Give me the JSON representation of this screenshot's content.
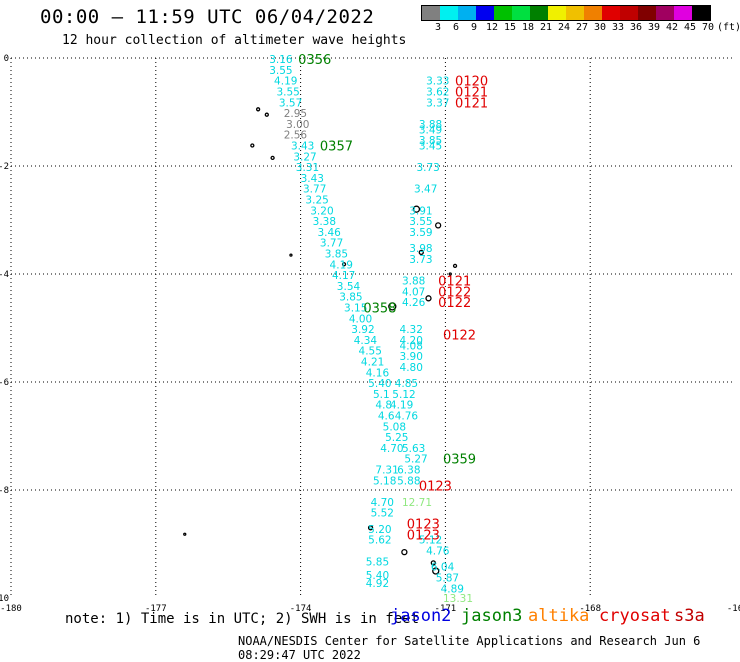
{
  "header": {
    "title": "00:00 — 11:59 UTC 06/04/2022",
    "subtitle": "12 hour collection of altimeter wave heights"
  },
  "legend": {
    "colors": [
      "#808080",
      "#00f0f0",
      "#00b0f0",
      "#0000f0",
      "#00c000",
      "#00e040",
      "#008000",
      "#f0f000",
      "#f0c000",
      "#f08000",
      "#e00000",
      "#c00000",
      "#800000",
      "#a00060",
      "#e000e0",
      "#000000"
    ],
    "labels": [
      "3",
      "6",
      "9",
      "12",
      "15",
      "18",
      "21",
      "24",
      "27",
      "30",
      "33",
      "36",
      "39",
      "42",
      "45",
      "70",
      "(ft)"
    ]
  },
  "axes": {
    "x_ticks": [
      "-180",
      "-177",
      "-174",
      "-171",
      "-168",
      "-16"
    ],
    "y_ticks": [
      "0",
      "-2",
      "-4",
      "-6",
      "-8",
      "-10"
    ]
  },
  "satellites": {
    "jason2": {
      "label": "jason2",
      "color": "#0000e0"
    },
    "jason3": {
      "label": "jason3",
      "color": "#008000"
    },
    "altika": {
      "label": "altika",
      "color": "#ff8000"
    },
    "cryosat": {
      "label": "cryosat",
      "color": "#e00000"
    },
    "s3a": {
      "label": "s3a",
      "color": "#c00000"
    }
  },
  "note": "note: 1) Time is in UTC; 2) SWH is in feet",
  "footer": "NOAA/NESDIS Center for Satellite Applications and Research   Jun  6 08:29:47 UTC 2022",
  "observations": [
    {
      "lon": -174.65,
      "lat": -0.02,
      "text": "3.16",
      "color": "#00d8e0"
    },
    {
      "lon": -174.65,
      "lat": -0.22,
      "text": "3.55",
      "color": "#00d8e0"
    },
    {
      "lon": -174.55,
      "lat": -0.42,
      "text": "4.19",
      "color": "#00d8e0"
    },
    {
      "lon": -174.5,
      "lat": -0.62,
      "text": "3.55",
      "color": "#00d8e0"
    },
    {
      "lon": -174.45,
      "lat": -0.82,
      "text": "3.57",
      "color": "#00d8e0"
    },
    {
      "lon": -174.35,
      "lat": -1.02,
      "text": "2.95",
      "color": "#808080"
    },
    {
      "lon": -174.3,
      "lat": -1.22,
      "text": "3.00",
      "color": "#808080"
    },
    {
      "lon": -174.35,
      "lat": -1.42,
      "text": "2.56",
      "color": "#808080"
    },
    {
      "lon": -174.2,
      "lat": -1.62,
      "text": "3.43",
      "color": "#00d8e0"
    },
    {
      "lon": -174.15,
      "lat": -1.82,
      "text": "3.27",
      "color": "#00d8e0"
    },
    {
      "lon": -174.1,
      "lat": -2.02,
      "text": "3.31",
      "color": "#00d8e0"
    },
    {
      "lon": -174.0,
      "lat": -2.22,
      "text": "3.43",
      "color": "#00d8e0"
    },
    {
      "lon": -173.95,
      "lat": -2.42,
      "text": "3.77",
      "color": "#00d8e0"
    },
    {
      "lon": -173.9,
      "lat": -2.62,
      "text": "3.25",
      "color": "#00d8e0"
    },
    {
      "lon": -173.8,
      "lat": -2.82,
      "text": "3.20",
      "color": "#00d8e0"
    },
    {
      "lon": -173.75,
      "lat": -3.02,
      "text": "3.38",
      "color": "#00d8e0"
    },
    {
      "lon": -173.65,
      "lat": -3.22,
      "text": "3.46",
      "color": "#00d8e0"
    },
    {
      "lon": -173.6,
      "lat": -3.42,
      "text": "3.77",
      "color": "#00d8e0"
    },
    {
      "lon": -173.5,
      "lat": -3.62,
      "text": "3.85",
      "color": "#00d8e0"
    },
    {
      "lon": -173.4,
      "lat": -3.82,
      "text": "4.19",
      "color": "#00d8e0"
    },
    {
      "lon": -173.35,
      "lat": -4.02,
      "text": "4.17",
      "color": "#00d8e0"
    },
    {
      "lon": -173.25,
      "lat": -4.22,
      "text": "3.54",
      "color": "#00d8e0"
    },
    {
      "lon": -173.2,
      "lat": -4.42,
      "text": "3.85",
      "color": "#00d8e0"
    },
    {
      "lon": -173.1,
      "lat": -4.62,
      "text": "3.15",
      "color": "#00d8e0"
    },
    {
      "lon": -173.0,
      "lat": -4.82,
      "text": "4.00",
      "color": "#00d8e0"
    },
    {
      "lon": -172.95,
      "lat": -5.02,
      "text": "3.92",
      "color": "#00d8e0"
    },
    {
      "lon": -172.9,
      "lat": -5.22,
      "text": "4.34",
      "color": "#00d8e0"
    },
    {
      "lon": -172.8,
      "lat": -5.42,
      "text": "4.55",
      "color": "#00d8e0"
    },
    {
      "lon": -172.75,
      "lat": -5.62,
      "text": "4.21",
      "color": "#00d8e0"
    },
    {
      "lon": -172.65,
      "lat": -5.82,
      "text": "4.16",
      "color": "#00d8e0"
    },
    {
      "lon": -172.6,
      "lat": -6.02,
      "text": "5.40",
      "color": "#00d8e0"
    },
    {
      "lon": -172.5,
      "lat": -6.22,
      "text": "5.1",
      "color": "#00d8e0"
    },
    {
      "lon": -172.45,
      "lat": -6.42,
      "text": "4.8",
      "color": "#00d8e0"
    },
    {
      "lon": -172.4,
      "lat": -6.62,
      "text": "4.6",
      "color": "#00d8e0"
    },
    {
      "lon": -172.3,
      "lat": -6.82,
      "text": "5.08",
      "color": "#00d8e0"
    },
    {
      "lon": -172.25,
      "lat": -7.02,
      "text": "5.25",
      "color": "#00d8e0"
    },
    {
      "lon": -172.35,
      "lat": -7.22,
      "text": "4.70",
      "color": "#00d8e0"
    },
    {
      "lon": -172.45,
      "lat": -7.62,
      "text": "7.31",
      "color": "#00d8e0"
    },
    {
      "lon": -172.5,
      "lat": -7.82,
      "text": "5.18",
      "color": "#00d8e0"
    },
    {
      "lon": -172.55,
      "lat": -8.22,
      "text": "4.70",
      "color": "#00d8e0"
    },
    {
      "lon": -172.55,
      "lat": -8.42,
      "text": "5.52",
      "color": "#00d8e0"
    },
    {
      "lon": -172.6,
      "lat": -8.72,
      "text": "5.20",
      "color": "#00d8e0"
    },
    {
      "lon": -172.6,
      "lat": -8.92,
      "text": "5.62",
      "color": "#00d8e0"
    },
    {
      "lon": -172.65,
      "lat": -9.32,
      "text": "5.85",
      "color": "#00d8e0"
    },
    {
      "lon": -172.65,
      "lat": -9.57,
      "text": "5.40",
      "color": "#00d8e0"
    },
    {
      "lon": -172.65,
      "lat": -9.72,
      "text": "4.92",
      "color": "#00d8e0"
    },
    {
      "lon": -172.05,
      "lat": -6.02,
      "text": "4.85",
      "color": "#00d8e0"
    },
    {
      "lon": -172.1,
      "lat": -6.22,
      "text": "5.12",
      "color": "#00d8e0"
    },
    {
      "lon": -172.15,
      "lat": -6.42,
      "text": "4.19",
      "color": "#00d8e0"
    },
    {
      "lon": -172.05,
      "lat": -6.62,
      "text": "4.76",
      "color": "#00d8e0"
    },
    {
      "lon": -171.9,
      "lat": -7.22,
      "text": "5.63",
      "color": "#00d8e0"
    },
    {
      "lon": -171.85,
      "lat": -7.42,
      "text": "5.27",
      "color": "#00d8e0"
    },
    {
      "lon": -172.0,
      "lat": -7.62,
      "text": "6.38",
      "color": "#00d8e0"
    },
    {
      "lon": -172.0,
      "lat": -7.82,
      "text": "5.88",
      "color": "#00d8e0"
    },
    {
      "lon": -171.9,
      "lat": -8.22,
      "text": "12.71",
      "color": "#90e880"
    },
    {
      "lon": -171.55,
      "lat": -8.92,
      "text": "5.12",
      "color": "#00d8e0"
    },
    {
      "lon": -171.4,
      "lat": -9.12,
      "text": "4.76",
      "color": "#00d8e0"
    },
    {
      "lon": -171.3,
      "lat": -9.42,
      "text": "6.04",
      "color": "#00d8e0"
    },
    {
      "lon": -171.2,
      "lat": -9.62,
      "text": "5.87",
      "color": "#00d8e0"
    },
    {
      "lon": -171.1,
      "lat": -9.82,
      "text": "4.89",
      "color": "#00d8e0"
    },
    {
      "lon": -171.05,
      "lat": -10.0,
      "text": "13.31",
      "color": "#90e880"
    },
    {
      "lon": -171.4,
      "lat": -0.42,
      "text": "3.33",
      "color": "#00d8e0"
    },
    {
      "lon": -171.4,
      "lat": -0.62,
      "text": "3.62",
      "color": "#00d8e0"
    },
    {
      "lon": -171.4,
      "lat": -0.82,
      "text": "3.37",
      "color": "#00d8e0"
    },
    {
      "lon": -171.55,
      "lat": -1.22,
      "text": "3.88",
      "color": "#00d8e0"
    },
    {
      "lon": -171.55,
      "lat": -1.32,
      "text": "3.49",
      "color": "#00d8e0"
    },
    {
      "lon": -171.55,
      "lat": -1.52,
      "text": "3.85",
      "color": "#00d8e0"
    },
    {
      "lon": -171.55,
      "lat": -1.62,
      "text": "3.45",
      "color": "#00d8e0"
    },
    {
      "lon": -171.6,
      "lat": -2.02,
      "text": "3.73",
      "color": "#00d8e0"
    },
    {
      "lon": -171.65,
      "lat": -2.42,
      "text": "3.47",
      "color": "#00d8e0"
    },
    {
      "lon": -171.75,
      "lat": -2.82,
      "text": "3.91",
      "color": "#00d8e0"
    },
    {
      "lon": -171.75,
      "lat": -3.02,
      "text": "3.55",
      "color": "#00d8e0"
    },
    {
      "lon": -171.75,
      "lat": -3.22,
      "text": "3.59",
      "color": "#00d8e0"
    },
    {
      "lon": -171.75,
      "lat": -3.52,
      "text": "3.98",
      "color": "#00d8e0"
    },
    {
      "lon": -171.75,
      "lat": -3.72,
      "text": "3.73",
      "color": "#00d8e0"
    },
    {
      "lon": -171.9,
      "lat": -4.12,
      "text": "3.88",
      "color": "#00d8e0"
    },
    {
      "lon": -171.9,
      "lat": -4.32,
      "text": "4.07",
      "color": "#00d8e0"
    },
    {
      "lon": -171.9,
      "lat": -4.52,
      "text": "4.26",
      "color": "#00d8e0"
    },
    {
      "lon": -171.95,
      "lat": -5.02,
      "text": "4.32",
      "color": "#00d8e0"
    },
    {
      "lon": -171.95,
      "lat": -5.22,
      "text": "4.20",
      "color": "#00d8e0"
    },
    {
      "lon": -171.95,
      "lat": -5.32,
      "text": "4.08",
      "color": "#00d8e0"
    },
    {
      "lon": -171.95,
      "lat": -5.52,
      "text": "3.90",
      "color": "#00d8e0"
    },
    {
      "lon": -171.95,
      "lat": -5.72,
      "text": "4.80",
      "color": "#00d8e0"
    }
  ],
  "time_labels": [
    {
      "lon": -174.05,
      "lat": -0.02,
      "text": "0356",
      "color": "#008000"
    },
    {
      "lon": -173.6,
      "lat": -1.62,
      "text": "0357",
      "color": "#008000"
    },
    {
      "lon": -172.7,
      "lat": -4.62,
      "text": "0358",
      "color": "#008000"
    },
    {
      "lon": -171.05,
      "lat": -7.42,
      "text": "0359",
      "color": "#008000"
    },
    {
      "lon": -170.8,
      "lat": -0.42,
      "text": "0120",
      "color": "#e00000"
    },
    {
      "lon": -170.8,
      "lat": -0.62,
      "text": "0121",
      "color": "#e00000"
    },
    {
      "lon": -170.8,
      "lat": -0.82,
      "text": "0121",
      "color": "#e00000"
    },
    {
      "lon": -171.15,
      "lat": -4.12,
      "text": "0121",
      "color": "#e00000"
    },
    {
      "lon": -171.15,
      "lat": -4.32,
      "text": "0122",
      "color": "#e00000"
    },
    {
      "lon": -171.15,
      "lat": -4.52,
      "text": "0122",
      "color": "#e00000"
    },
    {
      "lon": -171.05,
      "lat": -5.12,
      "text": "0122",
      "color": "#e00000"
    },
    {
      "lon": -171.55,
      "lat": -7.92,
      "text": "0123",
      "color": "#e00000"
    },
    {
      "lon": -171.8,
      "lat": -8.62,
      "text": "0123",
      "color": "#e00000"
    },
    {
      "lon": -171.8,
      "lat": -8.82,
      "text": "0123",
      "color": "#e00000"
    }
  ],
  "islands": [
    {
      "lon": -174.88,
      "lat": -0.95,
      "r": 1.5
    },
    {
      "lon": -174.7,
      "lat": -1.05,
      "r": 1.5
    },
    {
      "lon": -175.0,
      "lat": -1.62,
      "r": 1.5
    },
    {
      "lon": -174.58,
      "lat": -1.85,
      "r": 1.5
    },
    {
      "lon": -174.2,
      "lat": -3.65,
      "r": 1
    },
    {
      "lon": -173.1,
      "lat": -3.82,
      "r": 1.5
    },
    {
      "lon": -171.6,
      "lat": -2.8,
      "r": 3
    },
    {
      "lon": -171.15,
      "lat": -3.1,
      "r": 2.5
    },
    {
      "lon": -171.5,
      "lat": -3.6,
      "r": 2
    },
    {
      "lon": -170.8,
      "lat": -3.85,
      "r": 1.5
    },
    {
      "lon": -170.9,
      "lat": -4.0,
      "r": 1
    },
    {
      "lon": -172.1,
      "lat": -4.6,
      "r": 3.5
    },
    {
      "lon": -171.35,
      "lat": -4.45,
      "r": 2.5
    },
    {
      "lon": -172.55,
      "lat": -8.7,
      "r": 2
    },
    {
      "lon": -171.85,
      "lat": -9.15,
      "r": 2.5
    },
    {
      "lon": -171.25,
      "lat": -9.35,
      "r": 2
    },
    {
      "lon": -171.2,
      "lat": -9.5,
      "r": 3
    },
    {
      "lon": -176.4,
      "lat": -8.82,
      "r": 1
    }
  ]
}
